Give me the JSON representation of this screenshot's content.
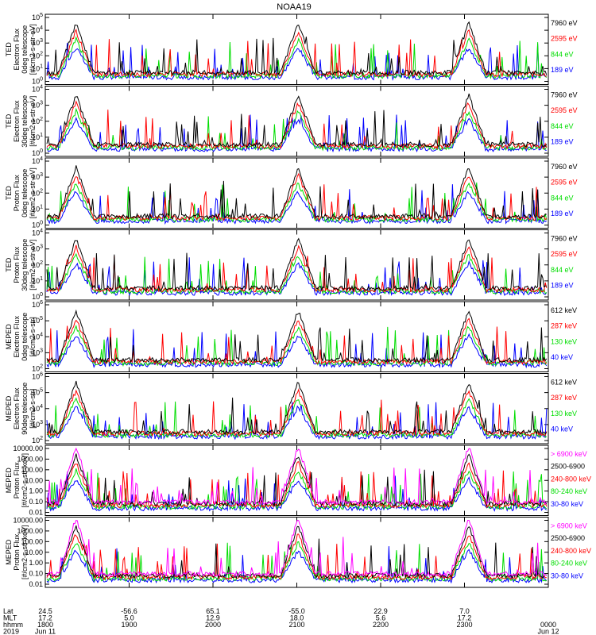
{
  "chart_data": {
    "type": "line",
    "title": "NOAA19",
    "xtick_labels": [
      "1800",
      "1900",
      "2000",
      "2100",
      "2200",
      "2300",
      "0000"
    ],
    "panels": [
      {
        "ylabel": [
          "TED",
          "Electron Flux",
          "0deg telescope",
          "[#/cm2-s-str-eV]"
        ],
        "yscale": "log",
        "yticks": [
          "10^0",
          "10^1",
          "10^2",
          "10^3",
          "10^4",
          "10^5"
        ],
        "legend": [
          {
            "label": "7960 eV",
            "color": "#000000"
          },
          {
            "label": "2595 eV",
            "color": "#ff0000"
          },
          {
            "label": "844 eV",
            "color": "#00dd00"
          },
          {
            "label": "189 eV",
            "color": "#0000ff"
          }
        ]
      },
      {
        "ylabel": [
          "TED",
          "Electron Flux",
          "30deg telescope",
          "[#/cm2-s-str-eV]"
        ],
        "yscale": "log",
        "yticks": [
          "10^0",
          "10^1",
          "10^2",
          "10^3",
          "10^4"
        ],
        "legend": [
          {
            "label": "7960 eV",
            "color": "#000000"
          },
          {
            "label": "2595 eV",
            "color": "#ff0000"
          },
          {
            "label": "844 eV",
            "color": "#00dd00"
          },
          {
            "label": "189 eV",
            "color": "#0000ff"
          }
        ]
      },
      {
        "ylabel": [
          "TED",
          "Proton Flux",
          "0deg telescope",
          "[#/cm2-s-str-eV]"
        ],
        "yscale": "log",
        "yticks": [
          "10^0",
          "10^1",
          "10^2",
          "10^3",
          "10^4"
        ],
        "legend": [
          {
            "label": "7960 eV",
            "color": "#000000"
          },
          {
            "label": "2595 eV",
            "color": "#ff0000"
          },
          {
            "label": "844 eV",
            "color": "#00dd00"
          },
          {
            "label": "189 eV",
            "color": "#0000ff"
          }
        ]
      },
      {
        "ylabel": [
          "TED",
          "Proton Flux",
          "30deg telescope",
          "[#/cm2-s-str-eV]"
        ],
        "yscale": "log",
        "yticks": [
          "10^0",
          "10^1",
          "10^2",
          "10^3",
          "10^4"
        ],
        "legend": [
          {
            "label": "7960 eV",
            "color": "#000000"
          },
          {
            "label": "2595 eV",
            "color": "#ff0000"
          },
          {
            "label": "844 eV",
            "color": "#00dd00"
          },
          {
            "label": "189 eV",
            "color": "#0000ff"
          }
        ]
      },
      {
        "ylabel": [
          "MEPED",
          "Electron Flux",
          "0deg telescope",
          "[#/cm2-s-str]"
        ],
        "yscale": "log",
        "yticks": [
          "10^2",
          "10^3",
          "10^4",
          "10^5",
          "10^6"
        ],
        "legend": [
          {
            "label": "612 keV",
            "color": "#000000"
          },
          {
            "label": "287 keV",
            "color": "#ff0000"
          },
          {
            "label": "130 keV",
            "color": "#00dd00"
          },
          {
            "label": "40 keV",
            "color": "#0000ff"
          }
        ]
      },
      {
        "ylabel": [
          "MEPED",
          "Electron Flux",
          "90deg telescope",
          "[#/cm2-s-str]"
        ],
        "yscale": "log",
        "yticks": [
          "10^2",
          "10^3",
          "10^4",
          "10^5",
          "10^6"
        ],
        "legend": [
          {
            "label": "612 keV",
            "color": "#000000"
          },
          {
            "label": "287 keV",
            "color": "#ff0000"
          },
          {
            "label": "130 keV",
            "color": "#00dd00"
          },
          {
            "label": "40 keV",
            "color": "#0000ff"
          }
        ]
      },
      {
        "ylabel": [
          "MEPED",
          "Proton Flux",
          "[#/cm2-s-str-keV]"
        ],
        "yscale": "log",
        "yticks": [
          "0.01",
          "0.10",
          "1.00",
          "10.00",
          "100.00",
          "1000.00",
          "10000.00"
        ],
        "legend": [
          {
            "label": "> 6900 keV",
            "color": "#ff00ff"
          },
          {
            "label": "2500-6900",
            "color": "#000000"
          },
          {
            "label": "240-800 keV",
            "color": "#ff0000"
          },
          {
            "label": "80-240 keV",
            "color": "#00dd00"
          },
          {
            "label": "30-80 keV",
            "color": "#0000ff"
          }
        ]
      },
      {
        "ylabel": [
          "MEPED",
          "Proton Flux",
          "[#/cm2-s-str-keV]"
        ],
        "yscale": "log",
        "yticks": [
          "0.01",
          "0.10",
          "1.00",
          "10.00",
          "100.00",
          "1000.00",
          "10000.00"
        ],
        "legend": [
          {
            "label": "> 6900 keV",
            "color": "#ff00ff"
          },
          {
            "label": "2500-6900",
            "color": "#000000"
          },
          {
            "label": "240-800 keV",
            "color": "#ff0000"
          },
          {
            "label": "80-240 keV",
            "color": "#00dd00"
          },
          {
            "label": "30-80 keV",
            "color": "#0000ff"
          }
        ]
      }
    ],
    "passes": [
      {
        "time": 1822,
        "peak": 1
      },
      {
        "time": 2101,
        "peak": 1
      },
      {
        "time": 2303,
        "peak": 1
      }
    ],
    "footer": {
      "row_labels": [
        "Lat",
        "MLT",
        "hhmm",
        "2019"
      ],
      "columns": [
        {
          "lat": "24.5",
          "mlt": "17.2",
          "hhmm": "1800",
          "date": "Jun 11"
        },
        {
          "lat": "-56.6",
          "mlt": "5.0",
          "hhmm": "1900",
          "date": ""
        },
        {
          "lat": "65.1",
          "mlt": "12.9",
          "hhmm": "2000",
          "date": ""
        },
        {
          "lat": "-55.0",
          "mlt": "18.0",
          "hhmm": "2100",
          "date": ""
        },
        {
          "lat": "22.9",
          "mlt": "5.6",
          "hhmm": "2200",
          "date": ""
        },
        {
          "lat": "7.0",
          "mlt": "17.2",
          "hhmm": "2300",
          "date": ""
        },
        {
          "lat": "",
          "mlt": "",
          "hhmm": "0000",
          "date": "Jun 12"
        }
      ]
    }
  }
}
